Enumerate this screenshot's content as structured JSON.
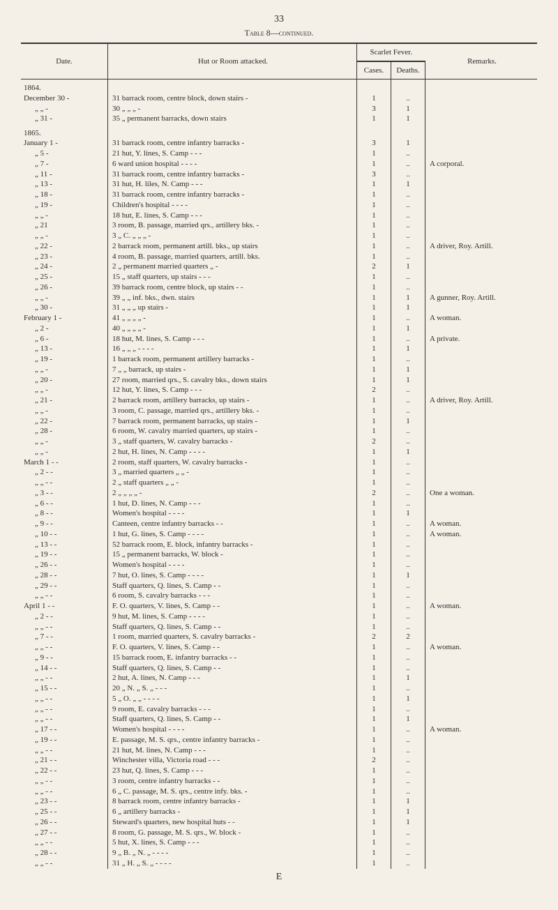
{
  "page_number": "33",
  "table_title": "Table 8—continued.",
  "headers": {
    "date": "Date.",
    "hut": "Hut or Room attacked.",
    "scarlet_fever": "Scarlet Fever.",
    "cases": "Cases.",
    "deaths": "Deaths.",
    "remarks": "Remarks."
  },
  "rows": [
    {
      "date": "1864.",
      "hut": "",
      "cases": "",
      "deaths": "",
      "remarks": "",
      "year": true
    },
    {
      "date": "December 30  -",
      "hut": "31 barrack room, centre block, down stairs   -",
      "cases": "1",
      "deaths": "..",
      "remarks": ""
    },
    {
      "date": "„    „   -",
      "hut": "30      „               „                „              -",
      "cases": "3",
      "deaths": "1",
      "remarks": ""
    },
    {
      "date": "„    31   -",
      "hut": "35      „         permanent barracks, down stairs",
      "cases": "1",
      "deaths": "1",
      "remarks": ""
    },
    {
      "date": "1865.",
      "hut": "",
      "cases": "",
      "deaths": "",
      "remarks": "",
      "year": true
    },
    {
      "date": "January  1   -",
      "hut": "31 barrack room, centre infantry barracks      -",
      "cases": "3",
      "deaths": "1",
      "remarks": ""
    },
    {
      "date": "„     5   -",
      "hut": "21 hut, Y. lines, S. Camp         -         -         -",
      "cases": "1",
      "deaths": "..",
      "remarks": ""
    },
    {
      "date": "„     7   -",
      "hut": "6 ward union hospital    -         -         -         -",
      "cases": "1",
      "deaths": "..",
      "remarks": "A corporal."
    },
    {
      "date": "„    11   -",
      "hut": "31 barrack room, centre infantry barracks      -",
      "cases": "3",
      "deaths": "..",
      "remarks": ""
    },
    {
      "date": "„    13   -",
      "hut": "31 hut, H. liles, N. Camp         -         -         -",
      "cases": "1",
      "deaths": "1",
      "remarks": ""
    },
    {
      "date": "„    18   -",
      "hut": "31 barrack room, centre infantry barracks      -",
      "cases": "1",
      "deaths": "..",
      "remarks": ""
    },
    {
      "date": "„    19   -",
      "hut": "Children's hospital        -         -         -         -",
      "cases": "1",
      "deaths": "..",
      "remarks": ""
    },
    {
      "date": "„    „   -",
      "hut": "18 hut, E. lines, S. Camp         -         -         -",
      "cases": "1",
      "deaths": "..",
      "remarks": ""
    },
    {
      "date": "„    21",
      "hut": "3 room, B. passage, married qrs., artillery bks.  -",
      "cases": "1",
      "deaths": "..",
      "remarks": ""
    },
    {
      "date": "„    „   -",
      "hut": "3   „   C.   „            „                 „           -",
      "cases": "1",
      "deaths": "..",
      "remarks": ""
    },
    {
      "date": "„    22   -",
      "hut": "2 barrack room, permanent artill. bks., up stairs",
      "cases": "1",
      "deaths": "..",
      "remarks": "A driver, Roy. Artill."
    },
    {
      "date": "„    23   -",
      "hut": "4 room, B. passage, married quarters, artill. bks.",
      "cases": "1",
      "deaths": "..",
      "remarks": ""
    },
    {
      "date": "„    24   -",
      "hut": "2   „   permanent married quarters       „       -",
      "cases": "2",
      "deaths": "1",
      "remarks": ""
    },
    {
      "date": "„    25   -",
      "hut": "15  „   staff quarters, up stairs  -         -         -",
      "cases": "1",
      "deaths": "..",
      "remarks": ""
    },
    {
      "date": "„    26   -",
      "hut": "39 barrack room, centre block, up stairs -      -",
      "cases": "1",
      "deaths": "..",
      "remarks": ""
    },
    {
      "date": "„    „   -",
      "hut": "39        „              „       inf. bks., dwn. stairs",
      "cases": "1",
      "deaths": "1",
      "remarks": "A gunner, Roy. Artill."
    },
    {
      "date": "„    30   -",
      "hut": "31        „              „         „       up stairs  -",
      "cases": "1",
      "deaths": "1",
      "remarks": ""
    },
    {
      "date": "February 1   -",
      "hut": "41        „              „         „          „         -",
      "cases": "1",
      "deaths": "..",
      "remarks": "A woman."
    },
    {
      "date": "„     2   -",
      "hut": "40        „              „         „          „         -",
      "cases": "1",
      "deaths": "1",
      "remarks": ""
    },
    {
      "date": "„     6   -",
      "hut": "18 hut, M. lines, S. Camp         -         -         -",
      "cases": "1",
      "deaths": "..",
      "remarks": "A private."
    },
    {
      "date": "„    13   -",
      "hut": "16   „      „         „       -         -         -         -",
      "cases": "1",
      "deaths": "1",
      "remarks": ""
    },
    {
      "date": "„    19   -",
      "hut": "1 barrack room, permanent artillery barracks   -",
      "cases": "1",
      "deaths": "..",
      "remarks": ""
    },
    {
      "date": "„    „   -",
      "hut": "7          „              „       barrack, up stairs   -",
      "cases": "1",
      "deaths": "1",
      "remarks": ""
    },
    {
      "date": "„    20   -",
      "hut": "27 room, married qrs., S. cavalry bks., down stairs",
      "cases": "1",
      "deaths": "1",
      "remarks": ""
    },
    {
      "date": "„    „   -",
      "hut": "12 hut, Y. lines, S. Camp         -         -         -",
      "cases": "2",
      "deaths": "..",
      "remarks": ""
    },
    {
      "date": "„    21   -",
      "hut": "2 barrack room, artillery barracks, up stairs    -",
      "cases": "1",
      "deaths": "..",
      "remarks": "A driver, Roy. Artill."
    },
    {
      "date": "„    „   -",
      "hut": "3 room, C. passage, married qrs., artillery bks.  -",
      "cases": "1",
      "deaths": "..",
      "remarks": ""
    },
    {
      "date": "„    22   -",
      "hut": "7 barrack room, permanent barracks, up stairs  -",
      "cases": "1",
      "deaths": "1",
      "remarks": ""
    },
    {
      "date": "„    28   -",
      "hut": "6 room, W. cavalry married quarters, up stairs -",
      "cases": "1",
      "deaths": "..",
      "remarks": ""
    },
    {
      "date": "„    „   -",
      "hut": "3   „   staff quarters, W. cavalry barracks      -",
      "cases": "2",
      "deaths": "..",
      "remarks": ""
    },
    {
      "date": "„    „   -",
      "hut": "2 hut, H. lines, N. Camp -         -         -         -",
      "cases": "1",
      "deaths": "1",
      "remarks": ""
    },
    {
      "date": "March  1  -   -",
      "hut": "2 room, staff quarters, W. cavalry barracks    -",
      "cases": "1",
      "deaths": "..",
      "remarks": ""
    },
    {
      "date": "„     2  -   -",
      "hut": "3   „    married quarters       „         „         -",
      "cases": "1",
      "deaths": "..",
      "remarks": ""
    },
    {
      "date": "„    „  -   -",
      "hut": "2   „    staff quarters          „         „         -",
      "cases": "1",
      "deaths": "..",
      "remarks": ""
    },
    {
      "date": "„     3  -   -",
      "hut": "2   „        „                   „         „         -",
      "cases": "2",
      "deaths": "..",
      "remarks": "One a woman."
    },
    {
      "date": "„     6  -   -",
      "hut": "1 hut, D. lines, N. Camp         -         -         -",
      "cases": "1",
      "deaths": "..",
      "remarks": ""
    },
    {
      "date": "„     8  -   -",
      "hut": "Women's hospital         -         -         -         -",
      "cases": "1",
      "deaths": "1",
      "remarks": ""
    },
    {
      "date": "„     9  -   -",
      "hut": "Canteen, centre infantry barracks        -         -",
      "cases": "1",
      "deaths": "..",
      "remarks": "A woman."
    },
    {
      "date": "„    10  -   -",
      "hut": "1 hut, G. lines, S. Camp -         -         -         -",
      "cases": "1",
      "deaths": "..",
      "remarks": "A woman."
    },
    {
      "date": "„    13  -   -",
      "hut": "52 barrack room, E. block, infantry barracks   -",
      "cases": "1",
      "deaths": "..",
      "remarks": ""
    },
    {
      "date": "„    19  -   -",
      "hut": "15        „         permanent barracks, W. block -",
      "cases": "1",
      "deaths": "..",
      "remarks": ""
    },
    {
      "date": "„    26  -   -",
      "hut": "Women's hospital         -         -         -         -",
      "cases": "1",
      "deaths": "..",
      "remarks": ""
    },
    {
      "date": "„    28  -   -",
      "hut": "7 hut, O. lines, S. Camp -         -         -         -",
      "cases": "1",
      "deaths": "1",
      "remarks": ""
    },
    {
      "date": "„    29  -   -",
      "hut": "Staff quarters, Q. lines, S. Camp        -         -",
      "cases": "1",
      "deaths": "..",
      "remarks": ""
    },
    {
      "date": "„    „  -   -",
      "hut": "6 room, S. cavalry barracks      -         -         -",
      "cases": "1",
      "deaths": "..",
      "remarks": ""
    },
    {
      "date": "April  1  -   -",
      "hut": "F. O. quarters, V. lines, S. Camp        -         -",
      "cases": "1",
      "deaths": "..",
      "remarks": "A woman."
    },
    {
      "date": "„     2  -   -",
      "hut": "9 hut, M. lines, S. Camp -         -         -         -",
      "cases": "1",
      "deaths": "..",
      "remarks": ""
    },
    {
      "date": "„    „  -   -",
      "hut": "Staff quarters, Q. lines, S. Camp        -         -",
      "cases": "1",
      "deaths": "..",
      "remarks": ""
    },
    {
      "date": "„     7  -   -",
      "hut": "1 room, married quarters, S. cavalry barracks  -",
      "cases": "2",
      "deaths": "2",
      "remarks": ""
    },
    {
      "date": "„    „  -   -",
      "hut": "F. O. quarters, V. lines, S. Camp        -         -",
      "cases": "1",
      "deaths": "..",
      "remarks": "A woman."
    },
    {
      "date": "„     9  -   -",
      "hut": "15 barrack room, E. infantry barracks    -         -",
      "cases": "1",
      "deaths": "..",
      "remarks": ""
    },
    {
      "date": "„    14  -   -",
      "hut": "Staff quarters, Q. lines, S. Camp        -         -",
      "cases": "1",
      "deaths": "..",
      "remarks": ""
    },
    {
      "date": "„    „  -   -",
      "hut": "2 hut, A. lines, N. Camp         -         -         -",
      "cases": "1",
      "deaths": "1",
      "remarks": ""
    },
    {
      "date": "„    15  -   -",
      "hut": "20  „   N.   „   S.   „          -         -         -",
      "cases": "1",
      "deaths": "..",
      "remarks": ""
    },
    {
      "date": "„    „  -   -",
      "hut": "5   „   O.   „    „     -         -         -         -",
      "cases": "1",
      "deaths": "1",
      "remarks": ""
    },
    {
      "date": "„    „  -   -",
      "hut": "9 room, E. cavalry barracks      -         -         -",
      "cases": "1",
      "deaths": "..",
      "remarks": ""
    },
    {
      "date": "„    „  -   -",
      "hut": "Staff quarters, Q. lines, S. Camp        -         -",
      "cases": "1",
      "deaths": "1",
      "remarks": ""
    },
    {
      "date": "„    17  -   -",
      "hut": "Women's hospital         -         -         -         -",
      "cases": "1",
      "deaths": "..",
      "remarks": "A woman."
    },
    {
      "date": "„    19  -   -",
      "hut": "E. passage, M. S. qrs., centre infantry barracks -",
      "cases": "1",
      "deaths": "..",
      "remarks": ""
    },
    {
      "date": "„    „  -   -",
      "hut": "21 hut, M. lines, N. Camp        -         -         -",
      "cases": "1",
      "deaths": "..",
      "remarks": ""
    },
    {
      "date": "„    21  -   -",
      "hut": "Winchester villa, Victoria road -         -         -",
      "cases": "2",
      "deaths": "..",
      "remarks": ""
    },
    {
      "date": "„    22  -   -",
      "hut": "23 hut, Q. lines, S. Camp        -         -         -",
      "cases": "1",
      "deaths": "..",
      "remarks": ""
    },
    {
      "date": "„    „  -   -",
      "hut": "3 room, centre infantry barracks         -         -",
      "cases": "1",
      "deaths": "..",
      "remarks": ""
    },
    {
      "date": "„    „  -   -",
      "hut": "6   „   C. passage, M. S. qrs., centre infy. bks. -",
      "cases": "1",
      "deaths": "..",
      "remarks": ""
    },
    {
      "date": "„    23  -   -",
      "hut": "8 barrack room, centre infantry barracks       -",
      "cases": "1",
      "deaths": "1",
      "remarks": ""
    },
    {
      "date": "„    25  -   -",
      "hut": "6          „         artillery barracks           -",
      "cases": "1",
      "deaths": "1",
      "remarks": ""
    },
    {
      "date": "„    26  -   -",
      "hut": "Steward's quarters, new hospital huts    -         -",
      "cases": "1",
      "deaths": "1",
      "remarks": ""
    },
    {
      "date": "„    27  -   -",
      "hut": "8 room, G. passage, M. S. qrs., W. block       -",
      "cases": "1",
      "deaths": "..",
      "remarks": ""
    },
    {
      "date": "„    „  -   -",
      "hut": "5 hut, X. lines, S. Camp         -         -         -",
      "cases": "1",
      "deaths": "..",
      "remarks": ""
    },
    {
      "date": "„    28  -   -",
      "hut": "9   „   B.   „   N.   „   -         -         -         -",
      "cases": "1",
      "deaths": "..",
      "remarks": ""
    },
    {
      "date": "„    „  -   -",
      "hut": "31  „   H.   „   S.   „   -         -         -         -",
      "cases": "1",
      "deaths": "..",
      "remarks": ""
    }
  ],
  "bottom_letter": "E"
}
